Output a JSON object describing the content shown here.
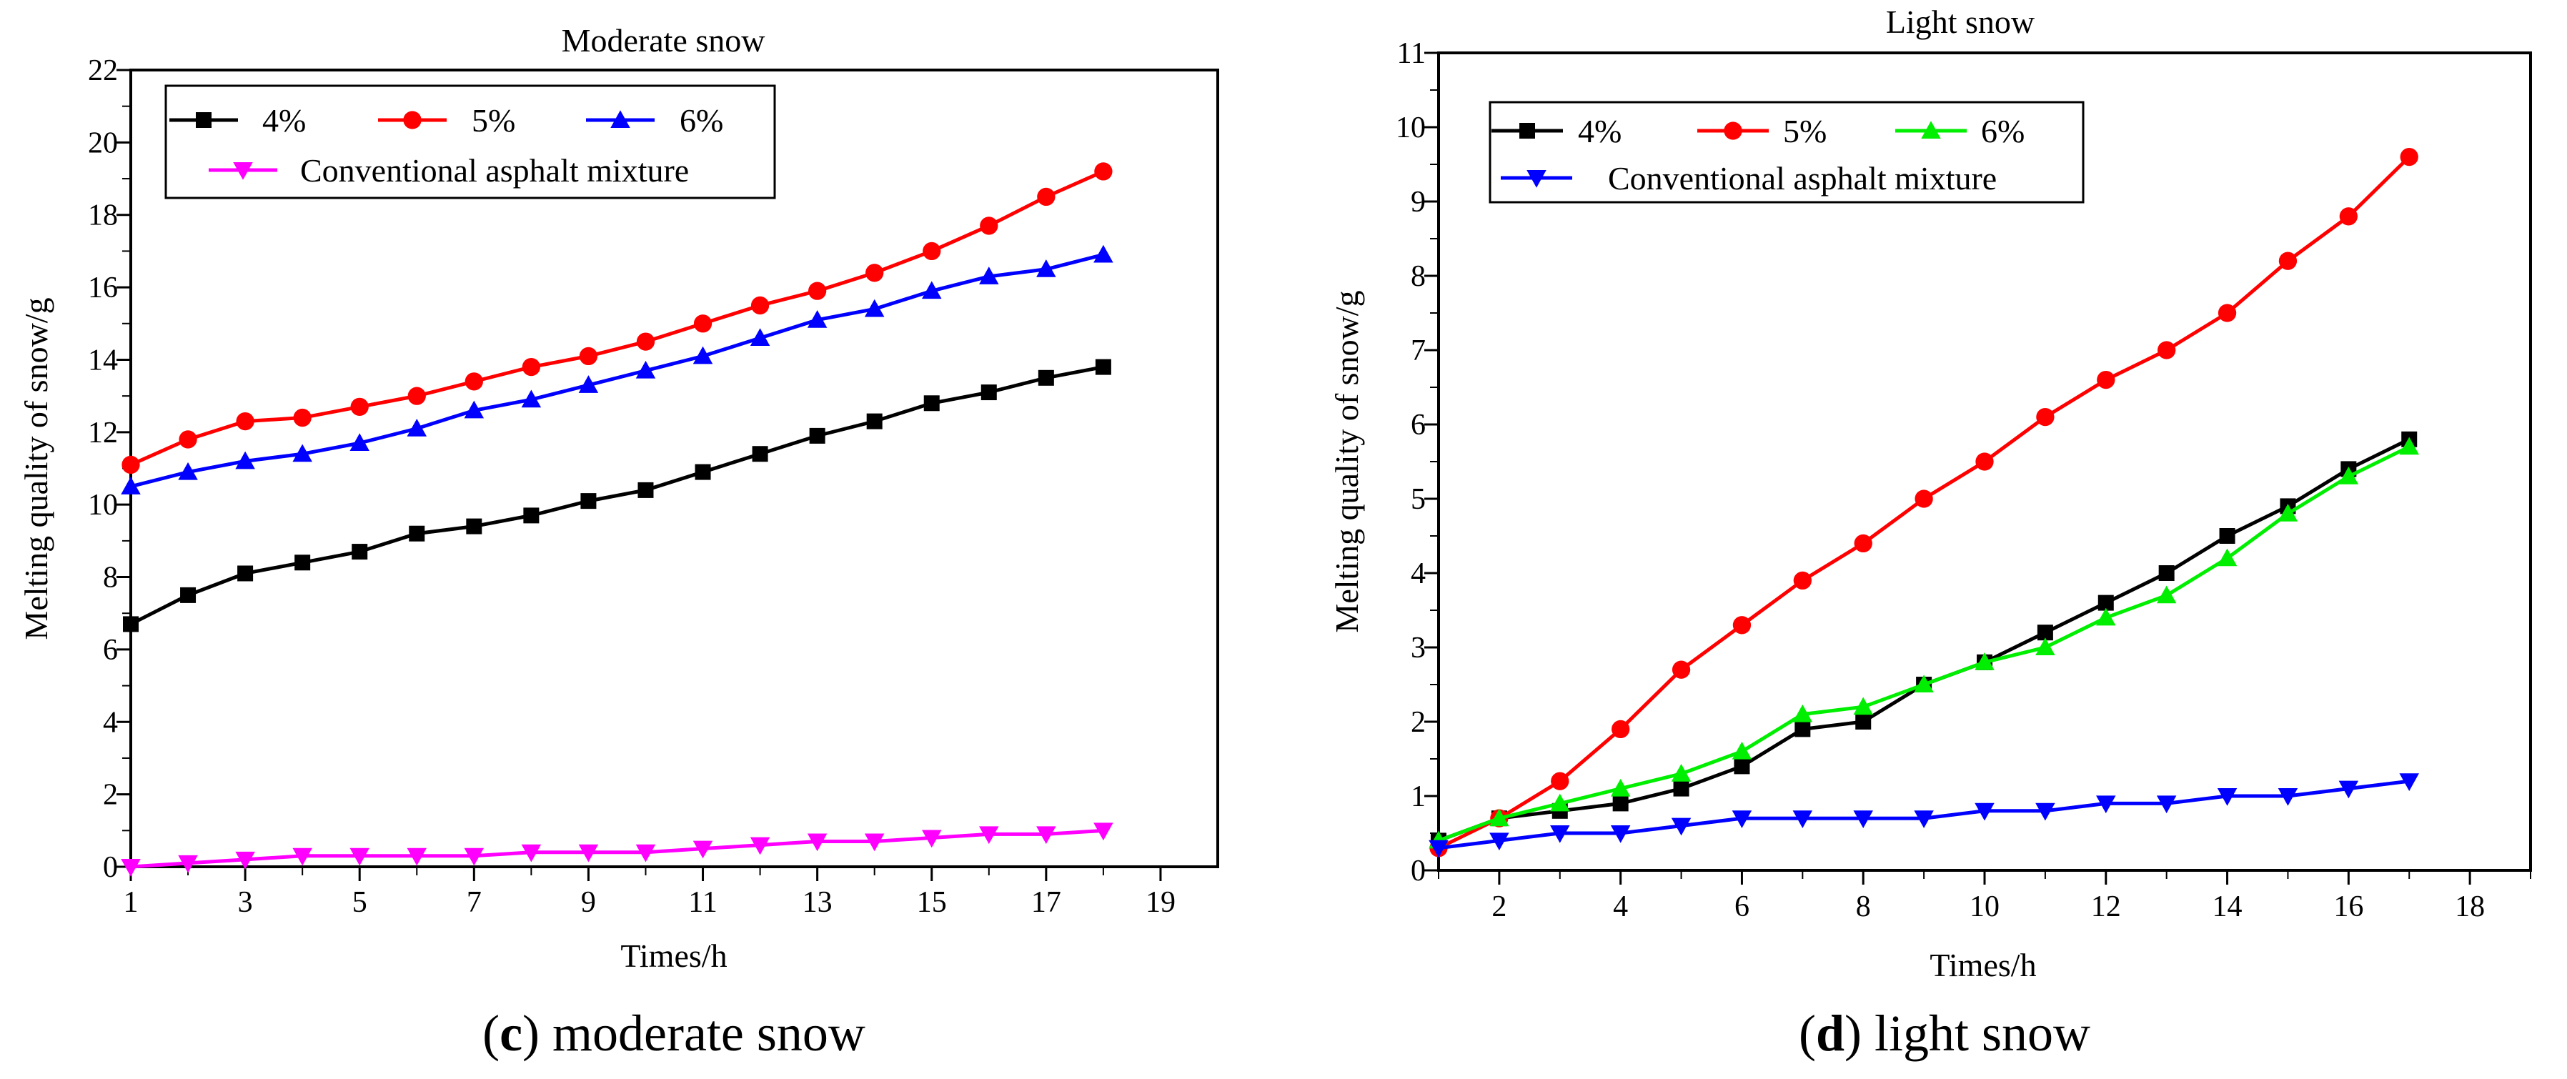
{
  "chart_data": [
    {
      "type": "line",
      "panel_letter": "c",
      "caption": "moderate snow",
      "title": "Moderate snow",
      "xlabel": "Times/h",
      "ylabel": "Melting quality of snow/g",
      "xlim": [
        1,
        20
      ],
      "ylim": [
        0,
        22
      ],
      "xticks": [
        1,
        3,
        5,
        7,
        9,
        11,
        13,
        15,
        17,
        19
      ],
      "yticks": [
        0,
        2,
        4,
        6,
        8,
        10,
        12,
        14,
        16,
        18,
        20,
        22
      ],
      "grid": false,
      "legend_position": "top-left",
      "x": [
        1,
        2,
        3,
        4,
        5,
        6,
        7,
        8,
        9,
        10,
        11,
        12,
        13,
        14,
        15,
        16,
        17,
        18
      ],
      "series": [
        {
          "name": "4%",
          "color": "#000000",
          "marker": "square",
          "values": [
            6.7,
            7.5,
            8.1,
            8.4,
            8.7,
            9.2,
            9.4,
            9.7,
            10.1,
            10.4,
            10.9,
            11.4,
            11.9,
            12.3,
            12.8,
            13.1,
            13.5,
            13.8
          ]
        },
        {
          "name": "5%",
          "color": "#ff0000",
          "marker": "circle",
          "values": [
            11.1,
            11.8,
            12.3,
            12.4,
            12.7,
            13.0,
            13.4,
            13.8,
            14.1,
            14.5,
            15.0,
            15.5,
            15.9,
            16.4,
            17.0,
            17.7,
            18.5,
            19.2
          ]
        },
        {
          "name": "6%",
          "color": "#0000ff",
          "marker": "triangle-up",
          "values": [
            10.5,
            10.9,
            11.2,
            11.4,
            11.7,
            12.1,
            12.6,
            12.9,
            13.3,
            13.7,
            14.1,
            14.6,
            15.1,
            15.4,
            15.9,
            16.3,
            16.5,
            16.9
          ]
        },
        {
          "name": "Conventional asphalt mixture",
          "color": "#ff00ff",
          "marker": "triangle-down",
          "values": [
            0.0,
            0.1,
            0.2,
            0.3,
            0.3,
            0.3,
            0.3,
            0.4,
            0.4,
            0.4,
            0.5,
            0.6,
            0.7,
            0.7,
            0.8,
            0.9,
            0.9,
            1.0
          ]
        }
      ]
    },
    {
      "type": "line",
      "panel_letter": "d",
      "caption": "light snow",
      "title": "Light snow",
      "xlabel": "Times/h",
      "ylabel": "Melting quality of snow/g",
      "xlim": [
        1,
        19
      ],
      "ylim": [
        0,
        11
      ],
      "xticks": [
        2,
        4,
        6,
        8,
        10,
        12,
        14,
        16,
        18
      ],
      "yticks": [
        0,
        1,
        2,
        3,
        4,
        5,
        6,
        7,
        8,
        9,
        10,
        11
      ],
      "grid": false,
      "legend_position": "top-left",
      "x": [
        1,
        2,
        3,
        4,
        5,
        6,
        7,
        8,
        9,
        10,
        11,
        12,
        13,
        14,
        15,
        16,
        17
      ],
      "series": [
        {
          "name": "4%",
          "color": "#000000",
          "marker": "square",
          "values": [
            0.4,
            0.7,
            0.8,
            0.9,
            1.1,
            1.4,
            1.9,
            2.0,
            2.5,
            2.8,
            3.2,
            3.6,
            4.0,
            4.5,
            4.9,
            5.4,
            5.8
          ]
        },
        {
          "name": "5%",
          "color": "#ff0000",
          "marker": "circle",
          "values": [
            0.3,
            0.7,
            1.2,
            1.9,
            2.7,
            3.3,
            3.9,
            4.4,
            5.0,
            5.5,
            6.1,
            6.6,
            7.0,
            7.5,
            8.2,
            8.8,
            9.6
          ]
        },
        {
          "name": "6%",
          "color": "#00ee00",
          "marker": "triangle-up",
          "values": [
            0.4,
            0.7,
            0.9,
            1.1,
            1.3,
            1.6,
            2.1,
            2.2,
            2.5,
            2.8,
            3.0,
            3.4,
            3.7,
            4.2,
            4.8,
            5.3,
            5.7
          ]
        },
        {
          "name": "Conventional asphalt mixture",
          "color": "#0000ff",
          "marker": "triangle-down",
          "values": [
            0.3,
            0.4,
            0.5,
            0.5,
            0.6,
            0.7,
            0.7,
            0.7,
            0.7,
            0.8,
            0.8,
            0.9,
            0.9,
            1.0,
            1.0,
            1.1,
            1.2
          ]
        }
      ]
    }
  ]
}
